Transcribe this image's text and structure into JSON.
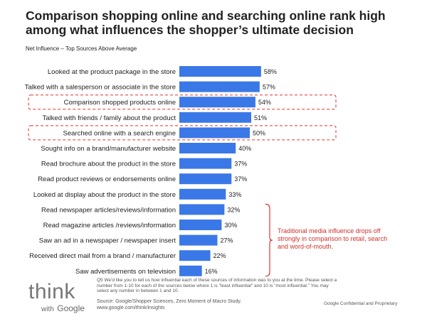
{
  "header": {
    "title": "Comparison shopping online and searching online rank high among what influences the shopper’s ultimate decision",
    "subtitle": "Net Influence – Top Sources Above Average"
  },
  "chart_data": {
    "type": "bar",
    "orientation": "horizontal",
    "title": "",
    "xlabel": "",
    "ylabel": "",
    "xlim": [
      0,
      100
    ],
    "grid": false,
    "categories": [
      "Looked at the product package in the store",
      "Talked with a salesperson or associate in the store",
      "Comparison shopped products online",
      "Talked with friends / family about the product",
      "Searched online with a search engine",
      "Sought info on a brand/manufacturer website",
      "Read brochure about the product in the store",
      "Read product reviews or endorsements online",
      "Looked at display about the product in the store",
      "Read newspaper articles/reviews/information",
      "Read magazine articles /reviews/information",
      "Saw an ad in a newspaper / newspaper insert",
      "Received direct mail from a brand / manufacturer",
      "Saw advertisements on television"
    ],
    "values": [
      58,
      57,
      54,
      51,
      50,
      40,
      37,
      37,
      33,
      32,
      30,
      27,
      22,
      16
    ],
    "value_labels": [
      "58%",
      "57%",
      "54%",
      "51%",
      "50%",
      "40%",
      "37%",
      "37%",
      "33%",
      "32%",
      "30%",
      "27%",
      "22%",
      "16%"
    ],
    "highlighted": [
      "Comparison shopped products online",
      "Searched online with a search engine"
    ],
    "bracketed": [
      "Read newspaper articles/reviews/information",
      "Read magazine articles /reviews/information",
      "Saw an ad in a newspaper / newspaper insert",
      "Received direct mail from a brand / manufacturer",
      "Saw advertisements on television"
    ],
    "annotation": "Traditional media influence drops off strongly in comparison to retail, search and word-of-mouth.",
    "colors": {
      "bar": "#3b78e7",
      "highlight": "#e0322b",
      "annotation": "#d0302a"
    }
  },
  "footer": {
    "logo_think": "think",
    "logo_with": "with",
    "logo_google": "Google",
    "footnote": "Q5 We'd like you to tell us how influential each of these sources of information was to you at the time. Please select a number from 1-10 for each of the sources below where 1 is \"least influential\" and 10 is \"most influential.\" You may select any number in between 1 and 10.",
    "source": "Source: Google/Shopper Sciences, Zero Moment of Macro Study.",
    "source_url": "www.google.com/think/insights",
    "confidential": "Google Confidential and Proprietary"
  }
}
